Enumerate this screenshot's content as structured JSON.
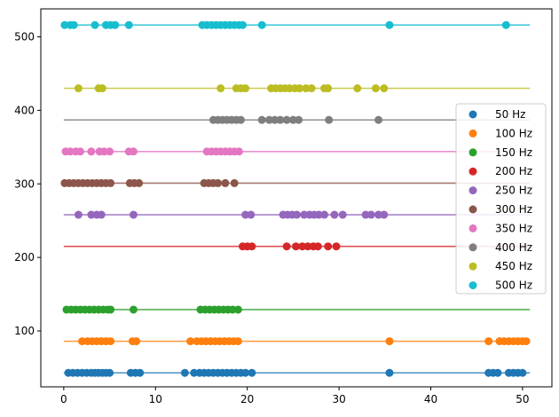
{
  "chart_data": {
    "type": "scatter",
    "title": "",
    "xlabel": "",
    "ylabel": "",
    "xlim": [
      -2.5,
      53.2
    ],
    "ylim": [
      24,
      538
    ],
    "x_ticks": [
      0,
      10,
      20,
      30,
      40,
      50
    ],
    "y_ticks": [
      100,
      200,
      300,
      400,
      500
    ],
    "grid": false,
    "legend_position": "center-right",
    "line_x_range": [
      0,
      50.8
    ],
    "series": [
      {
        "name": "50 Hz",
        "color": "#1f77b4",
        "y": 43,
        "x": [
          0.5,
          1.0,
          1.5,
          2.0,
          2.5,
          3.0,
          3.4,
          3.8,
          4.2,
          4.6,
          5.0,
          7.3,
          7.8,
          8.3,
          13.2,
          14.2,
          14.8,
          15.3,
          15.8,
          16.3,
          16.8,
          17.3,
          17.8,
          18.3,
          18.8,
          19.3,
          19.8,
          20.5,
          35.5,
          46.3,
          46.8,
          47.3,
          48.5,
          49.0,
          49.5,
          50.0
        ]
      },
      {
        "name": "100 Hz",
        "color": "#ff7f0e",
        "y": 86,
        "x": [
          2.0,
          2.6,
          3.1,
          3.6,
          4.1,
          4.6,
          5.1,
          7.5,
          7.9,
          13.8,
          14.5,
          15.0,
          15.5,
          16.0,
          16.5,
          17.0,
          17.5,
          18.0,
          18.5,
          19.0,
          35.5,
          46.3,
          47.5,
          48.0,
          48.5,
          49.0,
          49.5,
          50.0,
          50.4
        ]
      },
      {
        "name": "150 Hz",
        "color": "#2ca02c",
        "y": 129,
        "x": [
          0.3,
          0.8,
          1.3,
          1.8,
          2.3,
          2.8,
          3.3,
          3.8,
          4.3,
          4.8,
          5.1,
          7.6,
          14.9,
          15.4,
          15.9,
          16.4,
          16.9,
          17.4,
          17.9,
          18.4,
          19.0
        ]
      },
      {
        "name": "200 Hz",
        "color": "#d62728",
        "y": 215,
        "x": [
          19.5,
          20.0,
          20.5,
          24.3,
          25.3,
          26.0,
          26.6,
          27.2,
          27.7,
          28.8,
          29.7
        ]
      },
      {
        "name": "250 Hz",
        "color": "#9467bd",
        "y": 258,
        "x": [
          1.6,
          3.0,
          3.6,
          4.1,
          7.6,
          19.8,
          20.4,
          23.9,
          24.4,
          24.9,
          25.4,
          26.2,
          26.8,
          27.3,
          27.8,
          28.4,
          29.5,
          30.4,
          32.9,
          33.5,
          34.3,
          34.9
        ]
      },
      {
        "name": "300 Hz",
        "color": "#8c564b",
        "y": 301,
        "x": [
          0.1,
          0.6,
          1.1,
          1.6,
          2.1,
          2.6,
          3.1,
          3.6,
          4.1,
          4.6,
          5.1,
          7.2,
          7.7,
          8.2,
          15.3,
          15.8,
          16.3,
          16.8,
          17.6,
          18.6
        ]
      },
      {
        "name": "350 Hz",
        "color": "#e377c2",
        "y": 344,
        "x": [
          0.2,
          0.7,
          1.3,
          1.8,
          3.0,
          3.9,
          4.4,
          5.0,
          7.1,
          7.6,
          15.6,
          16.1,
          16.6,
          17.1,
          17.6,
          18.1,
          18.6,
          19.1
        ]
      },
      {
        "name": "400 Hz",
        "color": "#7f7f7f",
        "y": 387,
        "x": [
          16.3,
          16.8,
          17.3,
          17.8,
          18.3,
          18.8,
          19.3,
          21.6,
          22.4,
          23.0,
          23.6,
          24.3,
          25.0,
          25.6,
          28.9,
          34.3
        ]
      },
      {
        "name": "450 Hz",
        "color": "#bcbd22",
        "y": 430,
        "x": [
          1.6,
          3.8,
          4.2,
          17.1,
          18.8,
          19.3,
          19.8,
          22.6,
          23.1,
          23.6,
          24.1,
          24.6,
          25.2,
          25.7,
          26.4,
          27.0,
          28.4,
          28.8,
          32.0,
          34.0,
          34.9
        ]
      },
      {
        "name": "500 Hz",
        "color": "#17becf",
        "y": 516,
        "x": [
          0.1,
          0.7,
          1.1,
          3.4,
          4.6,
          5.1,
          5.6,
          7.1,
          15.1,
          15.6,
          16.1,
          16.6,
          17.1,
          17.6,
          18.1,
          18.6,
          19.1,
          19.5,
          21.6,
          35.5,
          48.2
        ]
      }
    ]
  }
}
